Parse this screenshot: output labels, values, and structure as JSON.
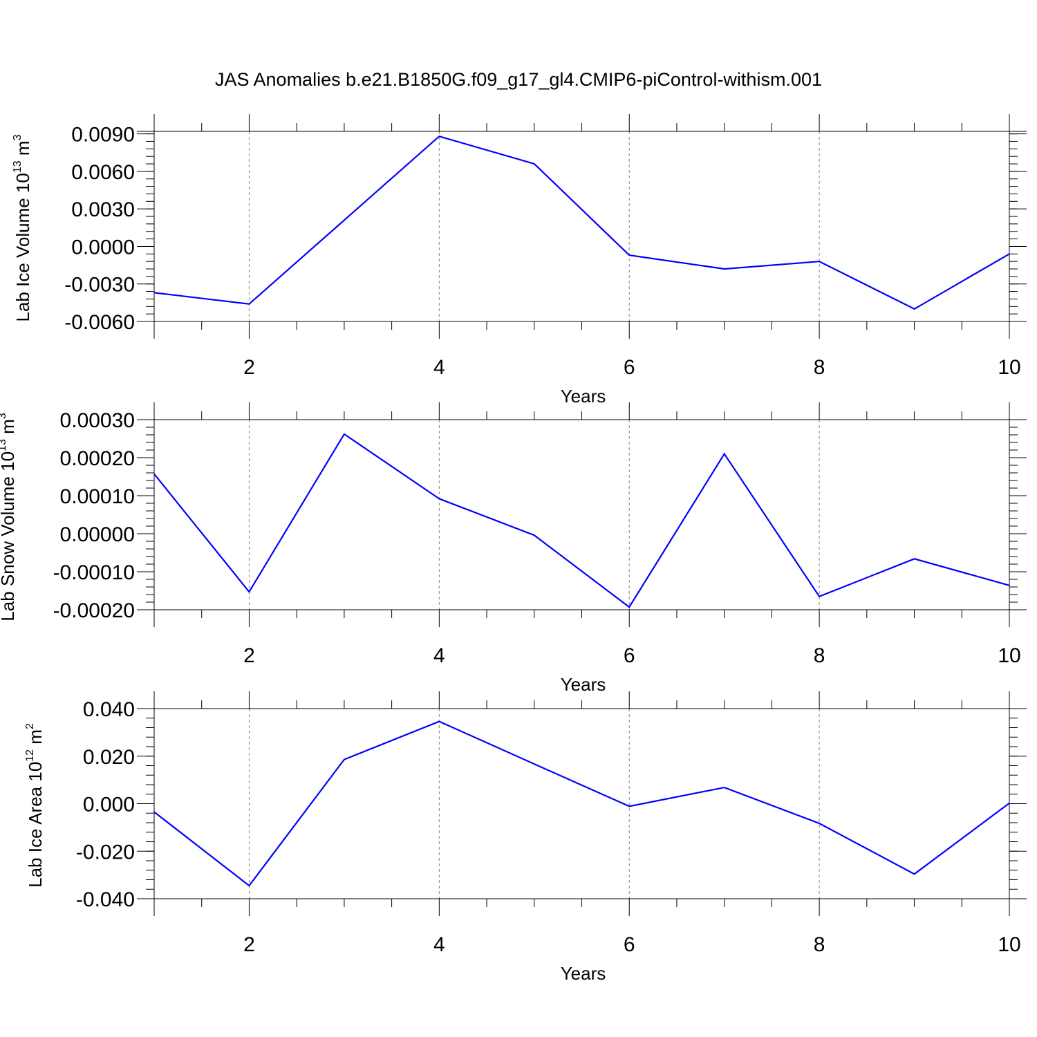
{
  "title": "JAS Anomalies b.e21.B1850G.f09_g17_gl4.CMIP6-piControl-withism.001",
  "colors": {
    "line": "#0000ff",
    "axis": "#000000",
    "grid": "#808080"
  },
  "chart_data": [
    {
      "type": "line",
      "title": "JAS Anomalies b.e21.B1850G.f09_g17_gl4.CMIP6-piControl-withism.001",
      "xlabel": "Years",
      "ylabel_text": "Lab Ice Volume 10",
      "ylabel_exp": "13",
      "ylabel_unit": " m",
      "ylabel_unit_exp": "3",
      "xlim": [
        1,
        10
      ],
      "ylim": [
        -0.006,
        0.0092
      ],
      "xticks": [
        2,
        4,
        6,
        8,
        10
      ],
      "xtick_labels": [
        "2",
        "4",
        "6",
        "8",
        "10"
      ],
      "yticks": [
        -0.006,
        -0.003,
        0.0,
        0.003,
        0.006,
        0.009
      ],
      "ytick_labels": [
        "-0.0060",
        "-0.0030",
        "0.0000",
        "0.0030",
        "0.0060",
        "0.0090"
      ],
      "grid": "vertical dashed at major x ticks",
      "series": [
        {
          "name": "Lab Ice Volume",
          "x": [
            1,
            2,
            3,
            4,
            5,
            6,
            7,
            8,
            9,
            10
          ],
          "values": [
            -0.0037,
            -0.0046,
            0.0021,
            0.0088,
            0.0066,
            -0.0007,
            -0.0018,
            -0.0012,
            -0.005,
            -0.0006
          ]
        }
      ]
    },
    {
      "type": "line",
      "xlabel": "Years",
      "ylabel_text": "Lab Snow Volume 10",
      "ylabel_exp": "13",
      "ylabel_unit": " m",
      "ylabel_unit_exp": "3",
      "xlim": [
        1,
        10
      ],
      "ylim": [
        -0.0002,
        0.0003
      ],
      "xticks": [
        2,
        4,
        6,
        8,
        10
      ],
      "xtick_labels": [
        "2",
        "4",
        "6",
        "8",
        "10"
      ],
      "yticks": [
        -0.0002,
        -0.0001,
        0.0,
        0.0001,
        0.0002,
        0.0003
      ],
      "ytick_labels": [
        "-0.00020",
        "-0.00010",
        "0.00000",
        "0.00010",
        "0.00020",
        "0.00030"
      ],
      "grid": "vertical dashed at major x ticks",
      "series": [
        {
          "name": "Lab Snow Volume",
          "x": [
            1,
            2,
            3,
            4,
            5,
            6,
            7,
            8,
            9,
            10
          ],
          "values": [
            0.000157,
            -0.000153,
            0.000262,
            9.2e-05,
            -4e-06,
            -0.000193,
            0.00021,
            -0.000165,
            -6.6e-05,
            -0.000136
          ]
        }
      ]
    },
    {
      "type": "line",
      "xlabel": "Years",
      "ylabel_text": "Lab Ice Area 10",
      "ylabel_exp": "12",
      "ylabel_unit": " m",
      "ylabel_unit_exp": "2",
      "xlim": [
        1,
        10
      ],
      "ylim": [
        -0.04,
        0.04
      ],
      "xticks": [
        2,
        4,
        6,
        8,
        10
      ],
      "xtick_labels": [
        "2",
        "4",
        "6",
        "8",
        "10"
      ],
      "yticks": [
        -0.04,
        -0.02,
        0.0,
        0.02,
        0.04
      ],
      "ytick_labels": [
        "-0.040",
        "-0.020",
        "0.000",
        "0.020",
        "0.040"
      ],
      "grid": "vertical dashed at major x ticks",
      "series": [
        {
          "name": "Lab Ice Area",
          "x": [
            1,
            2,
            3,
            4,
            5,
            6,
            7,
            8,
            9,
            10
          ],
          "values": [
            -0.0035,
            -0.0345,
            0.0186,
            0.0346,
            0.0167,
            -0.0011,
            0.0068,
            -0.0083,
            -0.0296,
            0.0002
          ]
        }
      ]
    }
  ]
}
